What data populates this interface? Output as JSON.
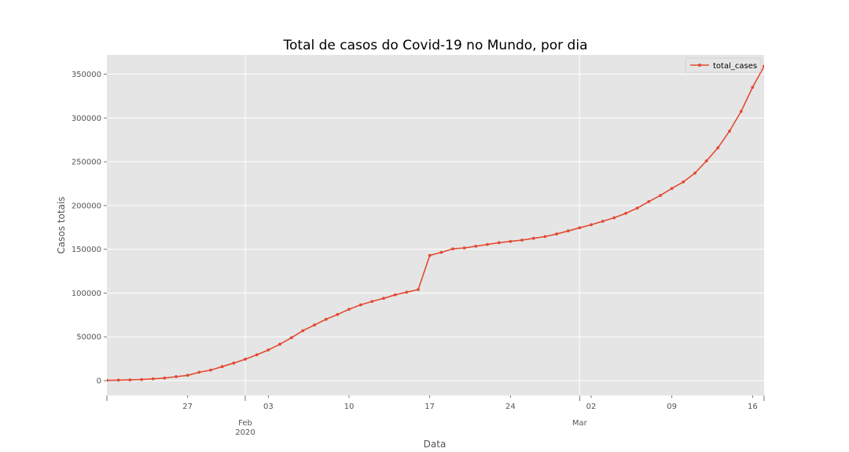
{
  "chart_data": {
    "type": "line",
    "title": "Total de casos do Covid-19 no Mundo, por dia",
    "xlabel": "Data",
    "ylabel": "Casos totais",
    "legend": {
      "position": "top-right",
      "entries": [
        "total_cases"
      ]
    },
    "grid": true,
    "colors": {
      "series": "#e24a33",
      "background": "#e5e5e5",
      "grid": "#ffffff",
      "axis_text": "#555555"
    },
    "xlim": [
      "2020-01-20",
      "2020-03-17"
    ],
    "ylim": [
      -17000,
      372000
    ],
    "y_ticks": [
      0,
      50000,
      100000,
      150000,
      200000,
      250000,
      300000,
      350000
    ],
    "y_tick_labels": [
      "0",
      "50000",
      "100000",
      "150000",
      "200000",
      "250000",
      "300000",
      "350000"
    ],
    "x_minor_ticks": [
      {
        "date": "2020-01-27",
        "label": "27"
      },
      {
        "date": "2020-02-03",
        "label": "03"
      },
      {
        "date": "2020-02-10",
        "label": "10"
      },
      {
        "date": "2020-02-17",
        "label": "17"
      },
      {
        "date": "2020-02-24",
        "label": "24"
      },
      {
        "date": "2020-03-02",
        "label": "02"
      },
      {
        "date": "2020-03-09",
        "label": "09"
      },
      {
        "date": "2020-03-16",
        "label": "16"
      }
    ],
    "x_major_ticks": [
      {
        "date": "2020-02-01",
        "label": "Feb",
        "sublabel": "2020"
      },
      {
        "date": "2020-03-01",
        "label": "Mar",
        "sublabel": ""
      }
    ],
    "series": [
      {
        "name": "total_cases",
        "x": [
          "2020-01-20",
          "2020-01-21",
          "2020-01-22",
          "2020-01-23",
          "2020-01-24",
          "2020-01-25",
          "2020-01-26",
          "2020-01-27",
          "2020-01-28",
          "2020-01-29",
          "2020-01-30",
          "2020-01-31",
          "2020-02-01",
          "2020-02-02",
          "2020-02-03",
          "2020-02-04",
          "2020-02-05",
          "2020-02-06",
          "2020-02-07",
          "2020-02-08",
          "2020-02-09",
          "2020-02-10",
          "2020-02-11",
          "2020-02-12",
          "2020-02-13",
          "2020-02-14",
          "2020-02-15",
          "2020-02-16",
          "2020-02-17",
          "2020-02-18",
          "2020-02-19",
          "2020-02-20",
          "2020-02-21",
          "2020-02-22",
          "2020-02-23",
          "2020-02-24",
          "2020-02-25",
          "2020-02-26",
          "2020-02-27",
          "2020-02-28",
          "2020-02-29",
          "2020-03-01",
          "2020-03-02",
          "2020-03-03",
          "2020-03-04",
          "2020-03-05",
          "2020-03-06",
          "2020-03-07",
          "2020-03-08",
          "2020-03-09",
          "2020-03-10",
          "2020-03-11",
          "2020-03-12",
          "2020-03-13",
          "2020-03-14",
          "2020-03-15",
          "2020-03-16",
          "2020-03-17"
        ],
        "values": [
          300,
          580,
          850,
          1300,
          2000,
          2900,
          4500,
          6000,
          9500,
          12000,
          16000,
          20000,
          24500,
          29500,
          35000,
          41500,
          49000,
          57000,
          63500,
          70000,
          75500,
          81500,
          86500,
          90500,
          94000,
          98000,
          101000,
          104000,
          143000,
          146500,
          150500,
          151500,
          153500,
          155500,
          157500,
          159000,
          160500,
          162500,
          164500,
          167500,
          171000,
          174500,
          178000,
          182000,
          186000,
          191000,
          197000,
          204500,
          211500,
          219500,
          227000,
          237000,
          251000,
          266000,
          285000,
          307500,
          335000,
          359000
        ]
      }
    ]
  }
}
